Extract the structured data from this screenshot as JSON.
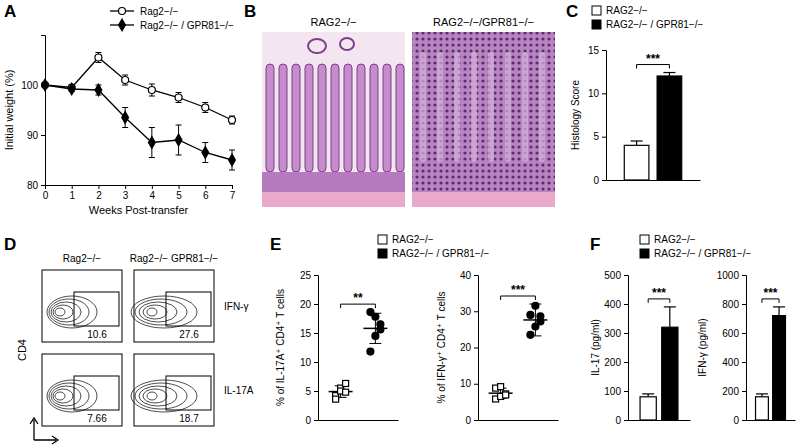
{
  "chart_data": [
    {
      "type": "line",
      "title": "A",
      "xlabel": "Weeks Post-transfer",
      "ylabel": "Initial weight (%)",
      "x": [
        0,
        1,
        2,
        3,
        4,
        5,
        6,
        7
      ],
      "xlim": [
        0,
        7
      ],
      "xticks": [
        0,
        1,
        2,
        3,
        4,
        5,
        6,
        7
      ],
      "ylim": [
        80,
        110
      ],
      "yticks": [
        80,
        90,
        100
      ],
      "series": [
        {
          "name": "Rag2−/−",
          "color": "#ffffff",
          "marker": "circle",
          "values": [
            100,
            99.5,
            105.5,
            101,
            99,
            97.5,
            95.5,
            93
          ],
          "errors": [
            0.3,
            0.5,
            1,
            1,
            1.2,
            1,
            1,
            0.8
          ]
        },
        {
          "name": "Rag2−/− / GPR81−/−",
          "color": "#000000",
          "marker": "diamond",
          "values": [
            100,
            99.2,
            99,
            93.5,
            88.5,
            89,
            86.5,
            85
          ],
          "errors": [
            0.3,
            0.5,
            1,
            2,
            3,
            3,
            2,
            2
          ]
        }
      ]
    },
    {
      "type": "image",
      "title": "B",
      "labels": [
        "RAG2−/−",
        "RAG2−/−/GPR81−/−"
      ]
    },
    {
      "type": "bar",
      "title": "C",
      "ylabel": "Histology Score",
      "categories": [
        null
      ],
      "ylim": [
        0,
        15
      ],
      "yticks": [
        0,
        5,
        10,
        15
      ],
      "tick_labels": "y",
      "annotations": [
        "***"
      ],
      "series": [
        {
          "name": "RAG2−/−",
          "color": "#ffffff",
          "values": [
            4
          ],
          "errors": [
            0.5
          ]
        },
        {
          "name": "RAG2−/− / GPR81−/−",
          "color": "#000000",
          "values": [
            12
          ],
          "errors": [
            0.4
          ]
        }
      ]
    },
    {
      "type": "flow",
      "title": "D",
      "ylabel": "CD4",
      "columns": [
        "Rag2−/−",
        "Rag2−/− GPR81−/−"
      ],
      "rows": [
        "IFN-γ",
        "IL-17A"
      ],
      "values": [
        [
          10.6,
          27.6
        ],
        [
          7.66,
          18.7
        ]
      ]
    },
    {
      "type": "strip",
      "title": "E",
      "ylabel": "% of IL-17A⁺ CD4⁺ T cells",
      "ylim": [
        0,
        25
      ],
      "yticks": [
        0,
        5,
        10,
        15,
        20,
        25
      ],
      "tick_labels": "y",
      "annotations": [
        "**"
      ],
      "series": [
        {
          "name": "RAG2−/−",
          "color": "#ffffff",
          "marker": "square",
          "values": [
            4.2,
            5.5,
            6.3,
            3.6,
            5.0,
            4.8
          ],
          "mean": 4.9,
          "error": 1.0
        },
        {
          "name": "RAG2−/− / GPR81−/−",
          "color": "#000000",
          "marker": "circle",
          "values": [
            11.8,
            14.5,
            16.5,
            18.6,
            17.8,
            15.6
          ],
          "mean": 15.8,
          "error": 2.6
        }
      ]
    },
    {
      "type": "strip",
      "ylabel": "% of IFN-γ⁺ CD4⁺ T cells",
      "ylim": [
        0,
        40
      ],
      "yticks": [
        0,
        10,
        20,
        30,
        40
      ],
      "tick_labels": "y",
      "annotations": [
        "***"
      ],
      "series": [
        {
          "color": "#ffffff",
          "marker": "square",
          "values": [
            5.8,
            6.5,
            7.2,
            8.8,
            9.2,
            6.9
          ],
          "mean": 7.4,
          "error": 1.4
        },
        {
          "color": "#000000",
          "marker": "circle",
          "values": [
            23.5,
            25.8,
            27.2,
            29.0,
            31.5,
            28.6
          ],
          "mean": 27.6,
          "error": 4.4
        }
      ]
    },
    {
      "type": "bar",
      "title": "F",
      "ylabel": "IL-17 (pg/ml)",
      "categories": [
        null
      ],
      "ylim": [
        0,
        500
      ],
      "yticks": [
        0,
        100,
        200,
        300,
        400,
        500
      ],
      "tick_labels": "y",
      "annotations": [
        "***"
      ],
      "series": [
        {
          "name": "RAG2−/−",
          "color": "#ffffff",
          "values": [
            80
          ],
          "errors": [
            10
          ]
        },
        {
          "name": "RAG2−/− / GPR81−/−",
          "color": "#000000",
          "values": [
            320
          ],
          "errors": [
            70
          ]
        }
      ]
    },
    {
      "type": "bar",
      "ylabel": "IFN-γ (pg/ml)",
      "categories": [
        null
      ],
      "ylim": [
        0,
        1000
      ],
      "yticks": [
        0,
        200,
        400,
        600,
        800,
        1000
      ],
      "tick_labels": "y",
      "annotations": [
        "***"
      ],
      "series": [
        {
          "color": "#ffffff",
          "values": [
            160
          ],
          "errors": [
            20
          ]
        },
        {
          "color": "#000000",
          "values": [
            720
          ],
          "errors": [
            60
          ]
        }
      ]
    }
  ]
}
